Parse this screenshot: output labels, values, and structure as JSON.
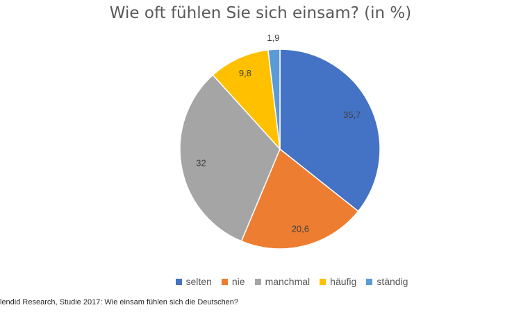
{
  "chart_data": {
    "type": "pie",
    "title": "Wie oft fühlen Sie sich einsam? (in %)",
    "categories": [
      "selten",
      "nie",
      "manchmal",
      "häufig",
      "ständig"
    ],
    "values": [
      35.7,
      20.6,
      32,
      9.8,
      1.9
    ],
    "value_labels": [
      "35,7",
      "20,6",
      "32",
      "9,8",
      "1,9"
    ],
    "colors": [
      "#4472C4",
      "#ED7D31",
      "#A5A5A5",
      "#FFC000",
      "#5B9BD5"
    ],
    "legend_position": "bottom"
  },
  "source": "lendid Research, Studie 2017: Wie einsam fühlen sich die Deutschen?"
}
